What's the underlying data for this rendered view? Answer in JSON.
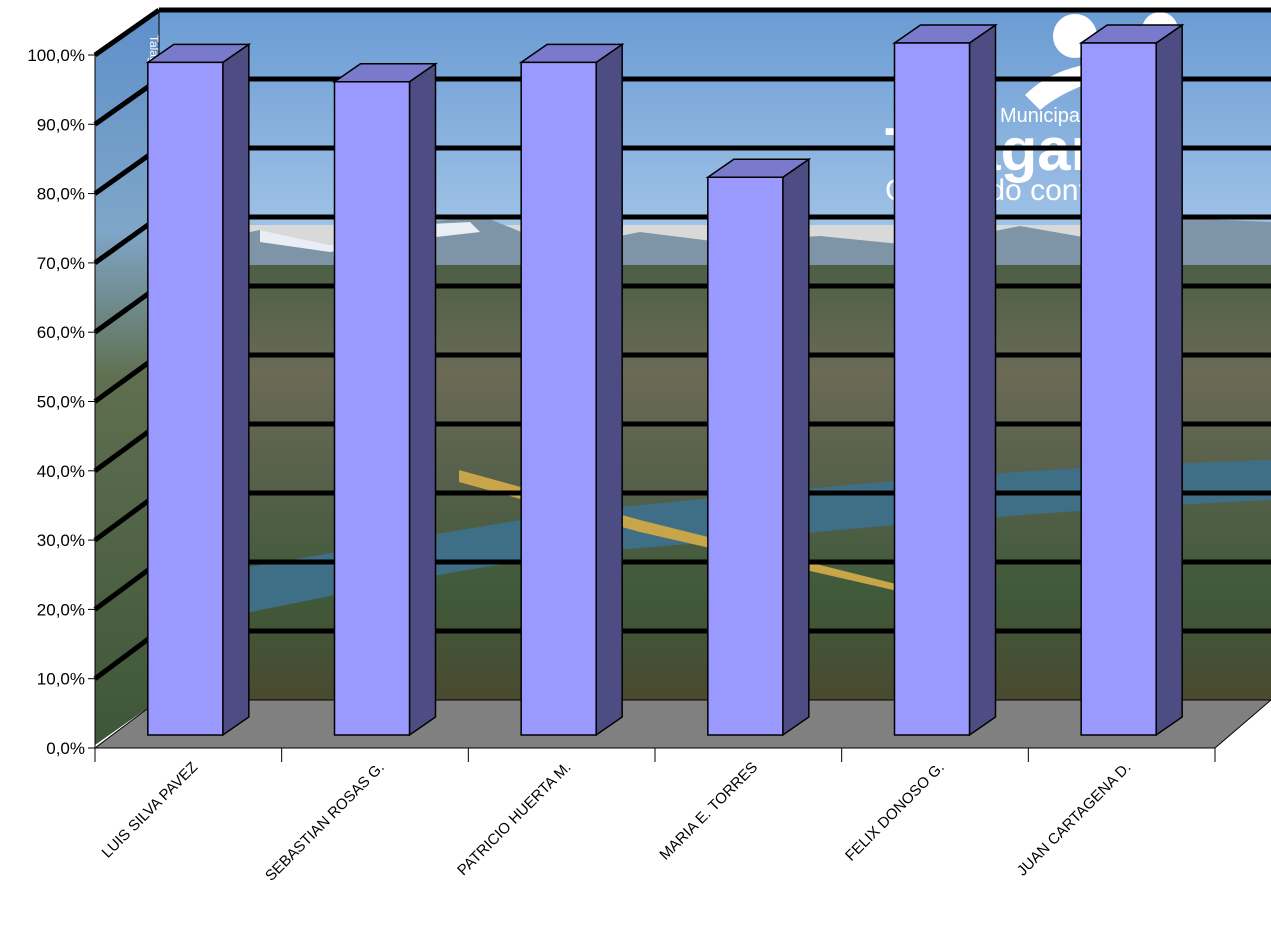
{
  "chart_data": {
    "type": "bar",
    "style": "3d-column",
    "categories": [
      "LUIS SILVA PAVEZ",
      "SEBASTIAN ROSAS G.",
      "PATRICIO HUERTA M.",
      "MARIA E. TORRES",
      "FELIX DONOSO G.",
      "JUAN CARTAGENA D."
    ],
    "values": [
      97.2,
      94.4,
      97.2,
      80.6,
      100.0,
      100.0
    ],
    "ylim": [
      0,
      100
    ],
    "y_ticks": [
      "0,0%",
      "10,0%",
      "20,0%",
      "30,0%",
      "40,0%",
      "50,0%",
      "60,0%",
      "70,0%",
      "80,0%",
      "90,0%",
      "100,0%"
    ],
    "grid": true,
    "legend": "none",
    "colors": {
      "bar_front": "#9999ff",
      "bar_side": "#4d4d84",
      "bar_top": "#7a7acc",
      "floor": "#808080",
      "sky": "#6f9fd4",
      "gridline": "#000000"
    }
  },
  "background_logo": {
    "line1": "Municipalidad",
    "line2": "Talagante",
    "line3": "Creciendo contigo"
  }
}
